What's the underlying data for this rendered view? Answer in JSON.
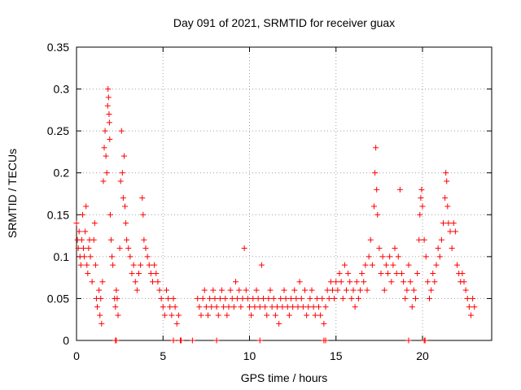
{
  "chart_data": {
    "type": "scatter",
    "title": "Day 091 of 2021, SRMTID for receiver guax",
    "xlabel": "GPS time / hours",
    "ylabel": "SRMTID / TECUs",
    "xlim": [
      0,
      24
    ],
    "ylim": [
      0,
      0.35
    ],
    "xticks": [
      0,
      5,
      10,
      15,
      20
    ],
    "yticks": [
      0,
      0.05,
      0.1,
      0.15,
      0.2,
      0.25,
      0.3,
      0.35
    ],
    "ytick_labels": [
      "0",
      "0.05",
      "0.1",
      "0.15",
      "0.2",
      "0.25",
      "0.3",
      "0.35"
    ],
    "grid": true,
    "marker": "plus",
    "color": "#ff0000",
    "series": [
      {
        "name": "SRMTID",
        "points": [
          [
            0.0,
            0.14
          ],
          [
            0.05,
            0.12
          ],
          [
            0.1,
            0.11
          ],
          [
            0.15,
            0.13
          ],
          [
            0.2,
            0.1
          ],
          [
            0.25,
            0.09
          ],
          [
            0.3,
            0.12
          ],
          [
            0.35,
            0.15
          ],
          [
            0.4,
            0.11
          ],
          [
            0.45,
            0.1
          ],
          [
            0.5,
            0.13
          ],
          [
            0.55,
            0.16
          ],
          [
            0.6,
            0.09
          ],
          [
            0.65,
            0.08
          ],
          [
            0.7,
            0.11
          ],
          [
            0.75,
            0.12
          ],
          [
            0.8,
            0.1
          ],
          [
            0.9,
            0.07
          ],
          [
            1.0,
            0.12
          ],
          [
            1.05,
            0.14
          ],
          [
            1.1,
            0.09
          ],
          [
            1.15,
            0.05
          ],
          [
            1.2,
            0.04
          ],
          [
            1.3,
            0.06
          ],
          [
            1.35,
            0.03
          ],
          [
            1.4,
            0.05
          ],
          [
            1.45,
            0.02
          ],
          [
            1.5,
            0.07
          ],
          [
            1.55,
            0.19
          ],
          [
            1.6,
            0.23
          ],
          [
            1.65,
            0.25
          ],
          [
            1.7,
            0.22
          ],
          [
            1.75,
            0.2
          ],
          [
            1.8,
            0.28
          ],
          [
            1.82,
            0.3
          ],
          [
            1.85,
            0.29
          ],
          [
            1.88,
            0.27
          ],
          [
            1.9,
            0.26
          ],
          [
            1.92,
            0.24
          ],
          [
            1.95,
            0.15
          ],
          [
            2.0,
            0.12
          ],
          [
            2.05,
            0.1
          ],
          [
            2.1,
            0.09
          ],
          [
            2.2,
            0.05
          ],
          [
            2.25,
            0.04
          ],
          [
            2.3,
            0.06
          ],
          [
            2.35,
            0.05
          ],
          [
            2.4,
            0.03
          ],
          [
            2.5,
            0.11
          ],
          [
            2.55,
            0.19
          ],
          [
            2.6,
            0.25
          ],
          [
            2.65,
            0.2
          ],
          [
            2.7,
            0.17
          ],
          [
            2.75,
            0.22
          ],
          [
            2.8,
            0.16
          ],
          [
            2.85,
            0.14
          ],
          [
            2.9,
            0.12
          ],
          [
            3.0,
            0.11
          ],
          [
            3.1,
            0.1
          ],
          [
            3.2,
            0.08
          ],
          [
            3.3,
            0.09
          ],
          [
            3.4,
            0.07
          ],
          [
            3.5,
            0.06
          ],
          [
            3.6,
            0.08
          ],
          [
            3.7,
            0.09
          ],
          [
            3.8,
            0.17
          ],
          [
            3.85,
            0.15
          ],
          [
            3.9,
            0.12
          ],
          [
            4.0,
            0.11
          ],
          [
            4.1,
            0.1
          ],
          [
            4.2,
            0.09
          ],
          [
            4.3,
            0.08
          ],
          [
            4.4,
            0.07
          ],
          [
            4.5,
            0.09
          ],
          [
            4.6,
            0.08
          ],
          [
            4.7,
            0.07
          ],
          [
            4.8,
            0.06
          ],
          [
            4.9,
            0.05
          ],
          [
            5.0,
            0.04
          ],
          [
            5.1,
            0.03
          ],
          [
            5.2,
            0.06
          ],
          [
            5.3,
            0.05
          ],
          [
            5.4,
            0.04
          ],
          [
            5.5,
            0.03
          ],
          [
            5.6,
            0.05
          ],
          [
            5.7,
            0.04
          ],
          [
            5.8,
            0.02
          ],
          [
            5.9,
            0.03
          ],
          [
            7.0,
            0.05
          ],
          [
            7.1,
            0.04
          ],
          [
            7.2,
            0.03
          ],
          [
            7.3,
            0.05
          ],
          [
            7.4,
            0.06
          ],
          [
            7.5,
            0.04
          ],
          [
            7.6,
            0.03
          ],
          [
            7.7,
            0.05
          ],
          [
            7.8,
            0.04
          ],
          [
            7.9,
            0.06
          ],
          [
            8.0,
            0.05
          ],
          [
            8.1,
            0.04
          ],
          [
            8.2,
            0.03
          ],
          [
            8.3,
            0.05
          ],
          [
            8.4,
            0.06
          ],
          [
            8.5,
            0.04
          ],
          [
            8.6,
            0.05
          ],
          [
            8.7,
            0.03
          ],
          [
            8.8,
            0.04
          ],
          [
            8.9,
            0.06
          ],
          [
            9.0,
            0.05
          ],
          [
            9.1,
            0.04
          ],
          [
            9.2,
            0.07
          ],
          [
            9.3,
            0.05
          ],
          [
            9.4,
            0.06
          ],
          [
            9.5,
            0.04
          ],
          [
            9.6,
            0.05
          ],
          [
            9.7,
            0.11
          ],
          [
            9.8,
            0.06
          ],
          [
            9.9,
            0.05
          ],
          [
            10.0,
            0.04
          ],
          [
            10.1,
            0.03
          ],
          [
            10.2,
            0.05
          ],
          [
            10.3,
            0.04
          ],
          [
            10.4,
            0.06
          ],
          [
            10.5,
            0.05
          ],
          [
            10.6,
            0.04
          ],
          [
            10.7,
            0.09
          ],
          [
            10.8,
            0.05
          ],
          [
            10.9,
            0.04
          ],
          [
            11.0,
            0.03
          ],
          [
            11.1,
            0.05
          ],
          [
            11.2,
            0.06
          ],
          [
            11.3,
            0.04
          ],
          [
            11.4,
            0.05
          ],
          [
            11.5,
            0.03
          ],
          [
            11.6,
            0.04
          ],
          [
            11.7,
            0.02
          ],
          [
            11.8,
            0.05
          ],
          [
            11.9,
            0.04
          ],
          [
            12.0,
            0.06
          ],
          [
            12.1,
            0.05
          ],
          [
            12.2,
            0.04
          ],
          [
            12.3,
            0.03
          ],
          [
            12.4,
            0.05
          ],
          [
            12.5,
            0.04
          ],
          [
            12.6,
            0.06
          ],
          [
            12.7,
            0.05
          ],
          [
            12.8,
            0.04
          ],
          [
            12.9,
            0.07
          ],
          [
            13.0,
            0.05
          ],
          [
            13.1,
            0.04
          ],
          [
            13.2,
            0.06
          ],
          [
            13.3,
            0.03
          ],
          [
            13.4,
            0.04
          ],
          [
            13.5,
            0.05
          ],
          [
            13.6,
            0.06
          ],
          [
            13.7,
            0.04
          ],
          [
            13.8,
            0.03
          ],
          [
            13.9,
            0.05
          ],
          [
            14.0,
            0.04
          ],
          [
            14.1,
            0.03
          ],
          [
            14.2,
            0.05
          ],
          [
            14.3,
            0.02
          ],
          [
            14.4,
            0.04
          ],
          [
            14.5,
            0.06
          ],
          [
            14.6,
            0.05
          ],
          [
            14.7,
            0.07
          ],
          [
            14.8,
            0.06
          ],
          [
            14.9,
            0.05
          ],
          [
            15.0,
            0.07
          ],
          [
            15.1,
            0.06
          ],
          [
            15.2,
            0.08
          ],
          [
            15.3,
            0.07
          ],
          [
            15.4,
            0.05
          ],
          [
            15.5,
            0.09
          ],
          [
            15.6,
            0.06
          ],
          [
            15.7,
            0.08
          ],
          [
            15.8,
            0.07
          ],
          [
            15.9,
            0.05
          ],
          [
            16.0,
            0.06
          ],
          [
            16.1,
            0.04
          ],
          [
            16.2,
            0.07
          ],
          [
            16.3,
            0.05
          ],
          [
            16.4,
            0.06
          ],
          [
            16.5,
            0.08
          ],
          [
            16.6,
            0.07
          ],
          [
            16.7,
            0.09
          ],
          [
            16.8,
            0.06
          ],
          [
            16.9,
            0.1
          ],
          [
            17.0,
            0.12
          ],
          [
            17.1,
            0.09
          ],
          [
            17.2,
            0.16
          ],
          [
            17.25,
            0.2
          ],
          [
            17.3,
            0.23
          ],
          [
            17.35,
            0.18
          ],
          [
            17.4,
            0.15
          ],
          [
            17.5,
            0.11
          ],
          [
            17.6,
            0.08
          ],
          [
            17.7,
            0.1
          ],
          [
            17.8,
            0.06
          ],
          [
            17.9,
            0.09
          ],
          [
            18.0,
            0.08
          ],
          [
            18.1,
            0.1
          ],
          [
            18.2,
            0.07
          ],
          [
            18.3,
            0.09
          ],
          [
            18.4,
            0.11
          ],
          [
            18.5,
            0.08
          ],
          [
            18.6,
            0.1
          ],
          [
            18.7,
            0.18
          ],
          [
            18.8,
            0.08
          ],
          [
            18.9,
            0.07
          ],
          [
            19.0,
            0.05
          ],
          [
            19.1,
            0.06
          ],
          [
            19.2,
            0.09
          ],
          [
            19.3,
            0.07
          ],
          [
            19.4,
            0.04
          ],
          [
            19.5,
            0.06
          ],
          [
            19.6,
            0.05
          ],
          [
            19.7,
            0.08
          ],
          [
            19.8,
            0.12
          ],
          [
            19.85,
            0.15
          ],
          [
            19.9,
            0.17
          ],
          [
            19.95,
            0.18
          ],
          [
            20.0,
            0.16
          ],
          [
            20.1,
            0.12
          ],
          [
            20.2,
            0.1
          ],
          [
            20.3,
            0.07
          ],
          [
            20.4,
            0.05
          ],
          [
            20.5,
            0.06
          ],
          [
            20.6,
            0.08
          ],
          [
            20.7,
            0.07
          ],
          [
            20.8,
            0.09
          ],
          [
            20.9,
            0.11
          ],
          [
            21.0,
            0.1
          ],
          [
            21.1,
            0.12
          ],
          [
            21.2,
            0.14
          ],
          [
            21.3,
            0.17
          ],
          [
            21.35,
            0.2
          ],
          [
            21.4,
            0.19
          ],
          [
            21.45,
            0.16
          ],
          [
            21.5,
            0.14
          ],
          [
            21.6,
            0.13
          ],
          [
            21.7,
            0.11
          ],
          [
            21.8,
            0.14
          ],
          [
            21.9,
            0.13
          ],
          [
            22.0,
            0.09
          ],
          [
            22.1,
            0.08
          ],
          [
            22.2,
            0.07
          ],
          [
            22.3,
            0.08
          ],
          [
            22.4,
            0.07
          ],
          [
            22.5,
            0.06
          ],
          [
            22.6,
            0.05
          ],
          [
            22.7,
            0.04
          ],
          [
            22.8,
            0.03
          ],
          [
            22.9,
            0.05
          ],
          [
            23.0,
            0.04
          ]
        ]
      }
    ],
    "zero_points_x": [
      2.25,
      2.3,
      5.6,
      6.0,
      6.05,
      6.7,
      8.1,
      10.6,
      14.3,
      14.4,
      19.2,
      20.1,
      20.15
    ]
  }
}
